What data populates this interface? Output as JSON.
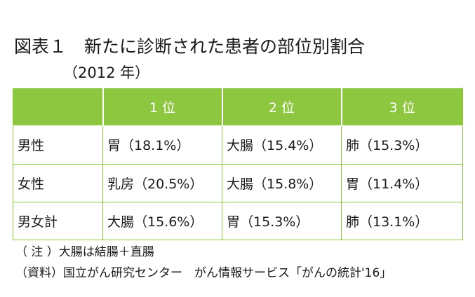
{
  "title": "図表１　新たに診断された患者の部位別割合",
  "subtitle": "（2012 年）",
  "table": {
    "headers": [
      "",
      "1 位",
      "2 位",
      "3 位"
    ],
    "rows": [
      {
        "label": "男性",
        "cells": [
          "胃（18.1%）",
          "大腸（15.4%）",
          "肺（15.3%）"
        ]
      },
      {
        "label": "女性",
        "cells": [
          "乳房（20.5%）",
          "大腸（15.8%）",
          "胃（11.4%）"
        ]
      },
      {
        "label": "男女計",
        "cells": [
          "大腸（15.6%）",
          "胃（15.3%）",
          "肺（13.1%）"
        ]
      }
    ]
  },
  "notes": {
    "note": "（ 注 ）大腸は結腸＋直腸",
    "source": "（資料）国立がん研究センター　がん情報サービス「がんの統計'16」"
  },
  "colors": {
    "header_bg": "#8dc63f",
    "header_text": "#ffffff",
    "border": "#8dc63f"
  }
}
